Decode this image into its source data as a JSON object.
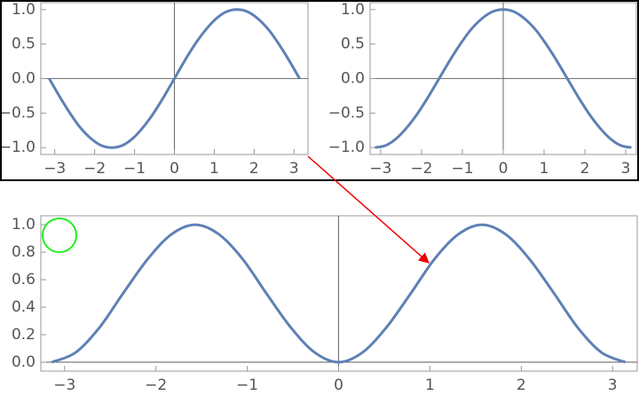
{
  "chart_data": [
    {
      "type": "line",
      "x": [
        -3.14,
        -2.88,
        -2.62,
        -2.36,
        -2.09,
        -1.83,
        -1.57,
        -1.31,
        -1.05,
        -0.79,
        -0.52,
        -0.26,
        0,
        0.26,
        0.52,
        0.79,
        1.05,
        1.31,
        1.57,
        1.83,
        2.09,
        2.36,
        2.62,
        2.88,
        3.14
      ],
      "series": [
        {
          "color": "#5e81b5",
          "values": [
            0,
            -0.26,
            -0.5,
            -0.71,
            -0.87,
            -0.97,
            -1,
            -0.97,
            -0.87,
            -0.71,
            -0.5,
            -0.26,
            0,
            0.26,
            0.5,
            0.71,
            0.87,
            0.97,
            1,
            0.97,
            0.87,
            0.71,
            0.5,
            0.26,
            0
          ]
        }
      ],
      "xlim": [
        -3.35,
        3.35
      ],
      "ylim": [
        -1.1,
        1.1
      ],
      "xticks": [
        {
          "value": -3,
          "label": "−3"
        },
        {
          "value": -2,
          "label": "−2"
        },
        {
          "value": -1,
          "label": "−1"
        },
        0,
        1,
        2,
        3
      ],
      "yticks": [
        {
          "value": -1,
          "label": "−1.0"
        },
        {
          "value": -0.5,
          "label": "−0.5"
        },
        {
          "value": 0,
          "label": "0.0"
        },
        0.5,
        {
          "value": 1,
          "label": "1.0"
        }
      ]
    },
    {
      "type": "line",
      "x": [
        -3.14,
        -2.88,
        -2.62,
        -2.36,
        -2.09,
        -1.83,
        -1.57,
        -1.31,
        -1.05,
        -0.79,
        -0.52,
        -0.26,
        0,
        0.26,
        0.52,
        0.79,
        1.05,
        1.31,
        1.57,
        1.83,
        2.09,
        2.36,
        2.62,
        2.88,
        3.14
      ],
      "series": [
        {
          "color": "#5e81b5",
          "values": [
            -1,
            -0.97,
            -0.87,
            -0.71,
            -0.5,
            -0.26,
            0,
            0.26,
            0.5,
            0.71,
            0.87,
            0.97,
            1,
            0.97,
            0.87,
            0.71,
            0.5,
            0.26,
            0,
            -0.26,
            -0.5,
            -0.71,
            -0.87,
            -0.97,
            -1
          ]
        }
      ],
      "xlim": [
        -3.26,
        3.26
      ],
      "ylim": [
        -1.1,
        1.1
      ],
      "xticks": [
        {
          "value": -3,
          "label": "−3"
        },
        {
          "value": -2,
          "label": "−2"
        },
        {
          "value": -1,
          "label": "−1"
        },
        0,
        1,
        2,
        3
      ],
      "yticks": [
        {
          "value": -1,
          "label": "−1.0"
        },
        {
          "value": -0.5,
          "label": "−0.5"
        },
        {
          "value": 0,
          "label": "0.0"
        },
        0.5,
        {
          "value": 1,
          "label": "1.0"
        }
      ]
    },
    {
      "type": "line",
      "x": [
        -3.14,
        -2.88,
        -2.62,
        -2.36,
        -2.09,
        -1.83,
        -1.57,
        -1.31,
        -1.05,
        -0.79,
        -0.52,
        -0.26,
        0,
        0.26,
        0.52,
        0.79,
        1.05,
        1.31,
        1.57,
        1.83,
        2.09,
        2.36,
        2.62,
        2.88,
        3.14
      ],
      "series": [
        {
          "color": "#5e81b5",
          "values": [
            0,
            0.07,
            0.25,
            0.5,
            0.75,
            0.93,
            1,
            0.93,
            0.75,
            0.5,
            0.25,
            0.07,
            0,
            0.07,
            0.25,
            0.5,
            0.75,
            0.93,
            1,
            0.93,
            0.75,
            0.5,
            0.25,
            0.07,
            0
          ]
        }
      ],
      "xlim": [
        -3.26,
        3.27
      ],
      "ylim": [
        -0.065,
        1.065
      ],
      "xticks": [
        {
          "value": -3,
          "label": "−3"
        },
        {
          "value": -2,
          "label": "−2"
        },
        {
          "value": -1,
          "label": "−1"
        },
        0,
        1,
        2,
        3
      ],
      "yticks": [
        {
          "value": 0,
          "label": "0.0"
        },
        0.2,
        0.4,
        0.6,
        0.8,
        {
          "value": 1,
          "label": "1.0"
        }
      ]
    }
  ]
}
